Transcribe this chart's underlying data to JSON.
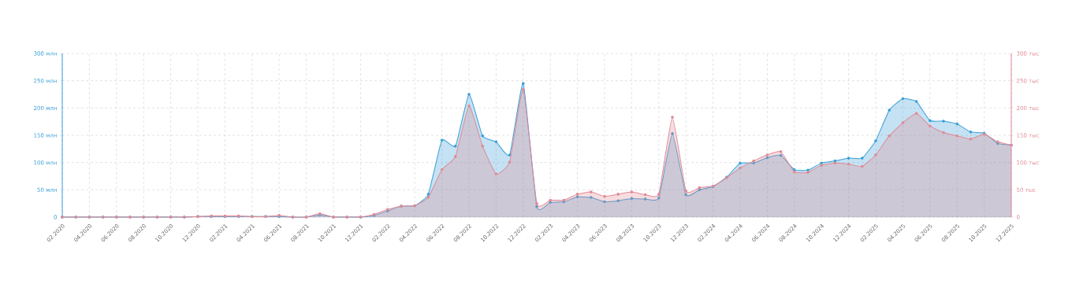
{
  "chart_data": {
    "type": "area",
    "categories": [
      "02.2020",
      null,
      "04.2020",
      null,
      "06.2020",
      null,
      "08.2020",
      null,
      "10.2020",
      null,
      "12.2020",
      null,
      "02.2021",
      null,
      "04.2021",
      null,
      "06.2021",
      null,
      "08.2021",
      null,
      "10.2021",
      null,
      "12.2021",
      null,
      "02.2022",
      null,
      "04.2022",
      null,
      "06.2022",
      null,
      "08.2022",
      null,
      "10.2022",
      null,
      "12.2022",
      null,
      "02.2023",
      null,
      "04.2023",
      null,
      "06.2023",
      null,
      "08.2023",
      null,
      "10.2023",
      null,
      "12.2023",
      null,
      "02.2024",
      null,
      "04.2024",
      null,
      "06.2024",
      null,
      "08.2024",
      null,
      "10.2024",
      null,
      "12.2024",
      null,
      "02.2025",
      null,
      "04.2025",
      null,
      "06.2025",
      null,
      "08.2025",
      null,
      "10.2025",
      null,
      "12.2025"
    ],
    "series": [
      {
        "color": "#3a9fd6",
        "values": [
          0,
          0,
          0,
          0,
          0,
          0,
          0,
          0,
          0,
          0,
          1,
          1,
          1,
          1,
          1,
          1,
          1,
          0,
          0,
          4,
          0,
          0,
          0,
          3,
          11,
          20,
          21,
          42,
          141,
          130,
          225,
          149,
          138,
          114,
          245,
          19,
          27,
          28,
          37,
          36,
          28,
          30,
          34,
          33,
          35,
          153,
          41,
          50,
          56,
          73,
          99,
          99,
          109,
          113,
          87,
          86,
          99,
          103,
          108,
          108,
          140,
          196,
          217,
          212,
          177,
          176,
          171,
          156,
          154,
          135,
          132
        ]
      },
      {
        "color": "#e08a96",
        "axis": "y2",
        "values": [
          0,
          0,
          0,
          0,
          0,
          0,
          0,
          0,
          0,
          0,
          1,
          2,
          2,
          2,
          1,
          1,
          3,
          0,
          0,
          6,
          0,
          0,
          0,
          5,
          14,
          20,
          21,
          36,
          87,
          111,
          204,
          130,
          79,
          101,
          234,
          25,
          31,
          31,
          42,
          46,
          38,
          42,
          46,
          41,
          42,
          183,
          48,
          54,
          57,
          72,
          90,
          103,
          114,
          120,
          83,
          82,
          95,
          99,
          97,
          93,
          114,
          149,
          173,
          190,
          167,
          155,
          149,
          143,
          152,
          138,
          132
        ]
      }
    ],
    "ylim": [
      0,
      300
    ],
    "yticks": [
      {
        "value": 0,
        "label": "0"
      },
      {
        "value": 50,
        "label": "50 млн"
      },
      {
        "value": 100,
        "label": "100 млн"
      },
      {
        "value": 150,
        "label": "150 млн"
      },
      {
        "value": 200,
        "label": "200 млн"
      },
      {
        "value": 250,
        "label": "250 млн"
      },
      {
        "value": 300,
        "label": "300 млн"
      }
    ],
    "y2lim": [
      0,
      300
    ],
    "y2ticks": [
      {
        "value": 0,
        "label": "0"
      },
      {
        "value": 50,
        "label": "50 тыс"
      },
      {
        "value": 100,
        "label": "100 тыс"
      },
      {
        "value": 150,
        "label": "150 тыс"
      },
      {
        "value": 200,
        "label": "200 тыс"
      },
      {
        "value": 250,
        "label": "250 тыс"
      },
      {
        "value": 300,
        "label": "300 тыс"
      }
    ],
    "grid": true,
    "marker": "circle"
  }
}
